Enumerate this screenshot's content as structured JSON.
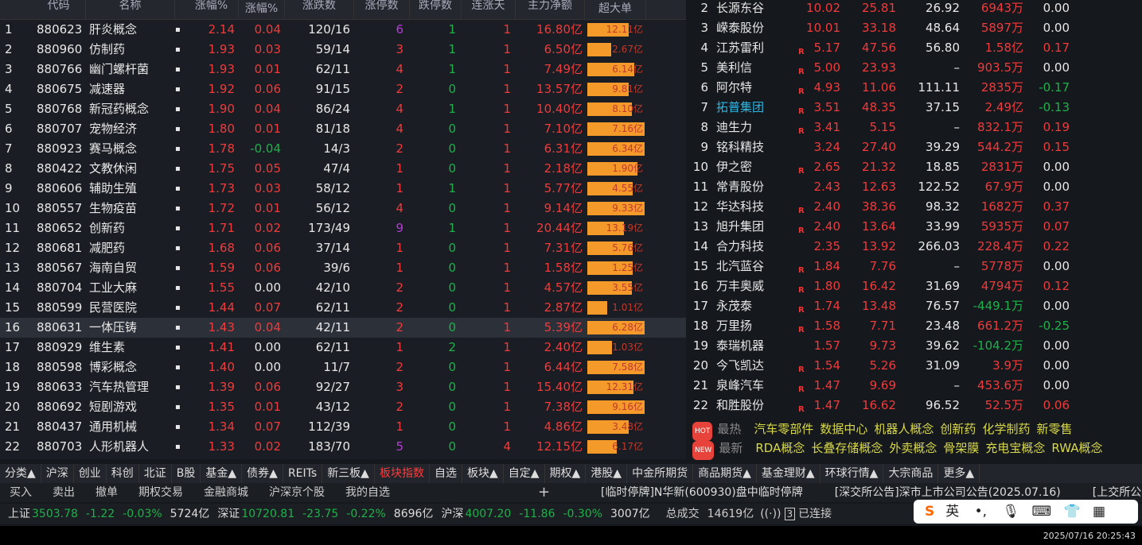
{
  "left": {
    "headers": [
      "代码",
      "名称",
      "涨幅%",
      "涨幅%",
      "涨跌数",
      "涨停数",
      "跌停数",
      "连涨天",
      "主力净额",
      "超大单"
    ],
    "rows": [
      [
        "1",
        "880623",
        "肝炎概念",
        "2.14",
        "0.04",
        "120/16",
        "6",
        "1",
        "1",
        "16.80亿",
        "12.11亿"
      ],
      [
        "2",
        "880960",
        "仿制药",
        "1.93",
        "0.03",
        "59/14",
        "3",
        "1",
        "1",
        "6.50亿",
        "2.67亿"
      ],
      [
        "3",
        "880766",
        "幽门螺杆菌",
        "1.93",
        "0.01",
        "62/11",
        "4",
        "1",
        "1",
        "7.49亿",
        "6.14亿"
      ],
      [
        "4",
        "880675",
        "减速器",
        "1.92",
        "0.06",
        "91/15",
        "2",
        "0",
        "1",
        "13.57亿",
        "9.81亿"
      ],
      [
        "5",
        "880768",
        "新冠药概念",
        "1.90",
        "0.04",
        "86/24",
        "4",
        "1",
        "1",
        "10.40亿",
        "8.10亿"
      ],
      [
        "6",
        "880707",
        "宠物经济",
        "1.80",
        "0.01",
        "81/18",
        "4",
        "0",
        "1",
        "7.10亿",
        "7.16亿"
      ],
      [
        "7",
        "880923",
        "赛马概念",
        "1.78",
        "-0.04",
        "14/3",
        "2",
        "0",
        "1",
        "6.31亿",
        "6.34亿"
      ],
      [
        "8",
        "880422",
        "文教休闲",
        "1.75",
        "0.05",
        "47/4",
        "1",
        "0",
        "1",
        "2.18亿",
        "1.90亿"
      ],
      [
        "9",
        "880606",
        "辅助生殖",
        "1.73",
        "0.03",
        "58/12",
        "1",
        "1",
        "1",
        "5.77亿",
        "4.55亿"
      ],
      [
        "10",
        "880557",
        "生物疫苗",
        "1.72",
        "0.01",
        "56/12",
        "4",
        "0",
        "1",
        "9.14亿",
        "9.33亿"
      ],
      [
        "11",
        "880652",
        "创新药",
        "1.71",
        "0.02",
        "173/49",
        "9",
        "1",
        "1",
        "20.44亿",
        "13.19亿"
      ],
      [
        "12",
        "880681",
        "减肥药",
        "1.68",
        "0.06",
        "37/14",
        "1",
        "0",
        "1",
        "7.31亿",
        "5.76亿"
      ],
      [
        "13",
        "880567",
        "海南自贸",
        "1.59",
        "0.06",
        "39/6",
        "1",
        "0",
        "1",
        "1.58亿",
        "1.25亿"
      ],
      [
        "14",
        "880704",
        "工业大麻",
        "1.55",
        "0.00",
        "42/10",
        "2",
        "0",
        "1",
        "4.57亿",
        "3.55亿"
      ],
      [
        "15",
        "880599",
        "民营医院",
        "1.44",
        "0.07",
        "62/11",
        "2",
        "0",
        "1",
        "2.87亿",
        "1.01亿"
      ],
      [
        "16",
        "880631",
        "一体压铸",
        "1.43",
        "0.04",
        "42/11",
        "2",
        "0",
        "1",
        "5.39亿",
        "6.28亿"
      ],
      [
        "17",
        "880929",
        "维生素",
        "1.41",
        "0.00",
        "62/11",
        "1",
        "2",
        "1",
        "2.40亿",
        "1.03亿"
      ],
      [
        "18",
        "880598",
        "博彩概念",
        "1.40",
        "0.00",
        "11/7",
        "2",
        "0",
        "1",
        "6.44亿",
        "7.58亿"
      ],
      [
        "19",
        "880633",
        "汽车热管理",
        "1.39",
        "0.06",
        "92/27",
        "3",
        "0",
        "1",
        "15.40亿",
        "12.31亿"
      ],
      [
        "20",
        "880692",
        "短剧游戏",
        "1.35",
        "0.01",
        "43/12",
        "2",
        "0",
        "1",
        "7.38亿",
        "9.16亿"
      ],
      [
        "21",
        "880437",
        "通用机械",
        "1.34",
        "0.07",
        "112/39",
        "1",
        "0",
        "1",
        "4.86亿",
        "3.48亿"
      ],
      [
        "22",
        "880703",
        "人形机器人",
        "1.33",
        "0.02",
        "183/70",
        "5",
        "0",
        "4",
        "12.15亿",
        "6.17亿"
      ]
    ]
  },
  "right": {
    "rows": [
      [
        "2",
        "长源东谷",
        "",
        "10.02",
        "25.81",
        "26.92",
        "6943万",
        "0.00"
      ],
      [
        "3",
        "嵘泰股份",
        "",
        "10.01",
        "33.18",
        "48.64",
        "5897万",
        "0.00"
      ],
      [
        "4",
        "江苏雷利",
        "R",
        "5.17",
        "47.56",
        "56.80",
        "1.58亿",
        "0.17"
      ],
      [
        "5",
        "美利信",
        "R",
        "5.00",
        "23.93",
        "–",
        "903.5万",
        "0.00"
      ],
      [
        "6",
        "阿尔特",
        "R",
        "4.93",
        "11.06",
        "111.11",
        "2835万",
        "-0.17"
      ],
      [
        "7",
        "拓普集团",
        "R",
        "3.51",
        "48.35",
        "37.15",
        "2.49亿",
        "-0.13"
      ],
      [
        "8",
        "迪生力",
        "R",
        "3.41",
        "5.15",
        "–",
        "832.1万",
        "0.19"
      ],
      [
        "9",
        "铭科精技",
        "",
        "3.24",
        "27.40",
        "39.29",
        "544.2万",
        "0.15"
      ],
      [
        "10",
        "伊之密",
        "R",
        "2.65",
        "21.32",
        "18.85",
        "2831万",
        "0.00"
      ],
      [
        "11",
        "常青股份",
        "",
        "2.43",
        "12.63",
        "122.52",
        "67.9万",
        "0.00"
      ],
      [
        "12",
        "华达科技",
        "R",
        "2.40",
        "38.36",
        "98.32",
        "1682万",
        "0.37"
      ],
      [
        "13",
        "旭升集团",
        "R",
        "2.40",
        "13.64",
        "33.99",
        "5935万",
        "0.07"
      ],
      [
        "14",
        "合力科技",
        "",
        "2.35",
        "13.92",
        "266.03",
        "228.4万",
        "0.22"
      ],
      [
        "15",
        "北汽蓝谷",
        "R",
        "1.84",
        "7.76",
        "–",
        "5778万",
        "0.00"
      ],
      [
        "16",
        "万丰奥威",
        "R",
        "1.80",
        "16.42",
        "31.69",
        "4794万",
        "0.12"
      ],
      [
        "17",
        "永茂泰",
        "R",
        "1.74",
        "13.48",
        "76.57",
        "-449.1万",
        "0.00"
      ],
      [
        "18",
        "万里扬",
        "R",
        "1.58",
        "7.71",
        "23.48",
        "661.2万",
        "-0.25"
      ],
      [
        "19",
        "泰瑞机器",
        "",
        "1.57",
        "9.73",
        "39.62",
        "-104.2万",
        "0.00"
      ],
      [
        "20",
        "今飞凯达",
        "R",
        "1.54",
        "5.26",
        "31.09",
        "3.9万",
        "0.00"
      ],
      [
        "21",
        "泉峰汽车",
        "R",
        "1.47",
        "9.69",
        "–",
        "453.6万",
        "0.00"
      ],
      [
        "22",
        "和胜股份",
        "R",
        "1.47",
        "16.62",
        "96.52",
        "52.5万",
        "0.06"
      ]
    ],
    "hot": {
      "badge": "HOT",
      "label": "最热",
      "items": [
        "汽车零部件",
        "数据中心",
        "机器人概念",
        "创新药",
        "化学制药",
        "新零售"
      ]
    },
    "new": {
      "badge": "NEW",
      "label": "最新",
      "items": [
        "RDA概念",
        "长叠存储概念",
        "外卖概念",
        "骨架膜",
        "充电宝概念",
        "RWA概念"
      ]
    }
  },
  "tabs": [
    "分类▲",
    "沪深",
    "创业",
    "科创",
    "北证",
    "B股",
    "基金▲",
    "债券▲",
    "REITs",
    "新三板▲",
    "板块指数",
    "自选",
    "板块▲",
    "自定▲",
    "期权▲",
    "港股▲",
    "中金所期货",
    "商品期货▲",
    "基金理财▲",
    "环球行情▲",
    "大宗商品",
    "更多▲"
  ],
  "active_tab": "板块指数",
  "toolbar": [
    "买入",
    "卖出",
    "撤单",
    "期权交易",
    "金融商城",
    "沪深京个股",
    "我的自选"
  ],
  "ticker": [
    "[临时停牌]N华新(600930)盘中临时停牌",
    "[深交所公告]深市上市公司公告(2025.07.16)",
    "[上交所公告"
  ],
  "status": {
    "sh": [
      "上证",
      "3503.78",
      "-1.22",
      "-0.03%",
      "5724亿"
    ],
    "sz": [
      "深证",
      "10720.81",
      "-23.75",
      "-0.22%",
      "8696亿"
    ],
    "hs": [
      "沪深",
      "4007.20",
      "-11.86",
      "-0.30%",
      "3007亿"
    ],
    "total_label": "总成交",
    "total": "14619亿",
    "conn": "已连接",
    "conn_count": "3"
  },
  "ime": {
    "lang": "英"
  },
  "clock": "2025/07/16 20:25:43",
  "colors": {
    "up": "#ef3b3b",
    "down": "#1fb14a",
    "bar": "#f39a2b",
    "active_tab": "#ff3b3b"
  }
}
